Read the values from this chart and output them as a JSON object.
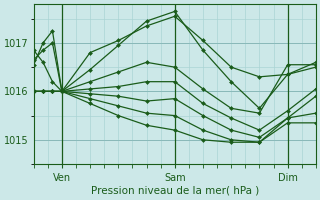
{
  "bg_color": "#cce8e8",
  "grid_color_major": "#88bbbb",
  "grid_color_minor": "#aad4d4",
  "line_color": "#1a5c1a",
  "marker_color": "#1a5c1a",
  "xlabel": "Pression niveau de la mer( hPa )",
  "xtick_labels": [
    "Ven",
    "Sam",
    "Dim"
  ],
  "xtick_positions": [
    12,
    60,
    108
  ],
  "ylim": [
    1014.5,
    1017.8
  ],
  "yticks": [
    1015,
    1016,
    1017
  ],
  "xlim": [
    0,
    120
  ],
  "lines": [
    [
      0,
      1016.85,
      4,
      1016.6,
      8,
      1016.2,
      12,
      1016.0,
      24,
      1016.8,
      36,
      1017.05,
      48,
      1017.35,
      60,
      1017.55,
      72,
      1017.05,
      84,
      1016.5,
      96,
      1016.3,
      108,
      1016.35,
      120,
      1016.5
    ],
    [
      0,
      1016.55,
      4,
      1017.0,
      8,
      1017.25,
      12,
      1016.0,
      24,
      1016.45,
      36,
      1016.95,
      48,
      1017.45,
      60,
      1017.65,
      72,
      1016.85,
      84,
      1016.2,
      96,
      1015.65,
      108,
      1016.35,
      120,
      1016.6
    ],
    [
      0,
      1016.65,
      4,
      1016.85,
      8,
      1017.0,
      12,
      1016.0,
      24,
      1016.2,
      36,
      1016.4,
      48,
      1016.6,
      60,
      1016.5,
      72,
      1016.05,
      84,
      1015.65,
      96,
      1015.55,
      108,
      1016.55,
      120,
      1016.55
    ],
    [
      0,
      1016.0,
      4,
      1016.0,
      8,
      1016.0,
      12,
      1016.0,
      24,
      1016.05,
      36,
      1016.1,
      48,
      1016.2,
      60,
      1016.2,
      72,
      1015.75,
      84,
      1015.45,
      96,
      1015.2,
      108,
      1015.6,
      120,
      1016.05
    ],
    [
      0,
      1016.0,
      4,
      1016.0,
      8,
      1016.0,
      12,
      1016.0,
      24,
      1015.95,
      36,
      1015.9,
      48,
      1015.8,
      60,
      1015.85,
      72,
      1015.5,
      84,
      1015.2,
      96,
      1015.05,
      108,
      1015.45,
      120,
      1015.9
    ],
    [
      0,
      1016.0,
      4,
      1016.0,
      8,
      1016.0,
      12,
      1016.0,
      24,
      1015.85,
      36,
      1015.7,
      48,
      1015.55,
      60,
      1015.5,
      72,
      1015.2,
      84,
      1015.0,
      96,
      1014.95,
      108,
      1015.45,
      120,
      1015.55
    ],
    [
      0,
      1016.0,
      4,
      1016.0,
      8,
      1016.0,
      12,
      1016.0,
      24,
      1015.75,
      36,
      1015.5,
      48,
      1015.3,
      60,
      1015.2,
      72,
      1015.0,
      84,
      1014.95,
      96,
      1014.95,
      108,
      1015.35,
      120,
      1015.35
    ]
  ]
}
